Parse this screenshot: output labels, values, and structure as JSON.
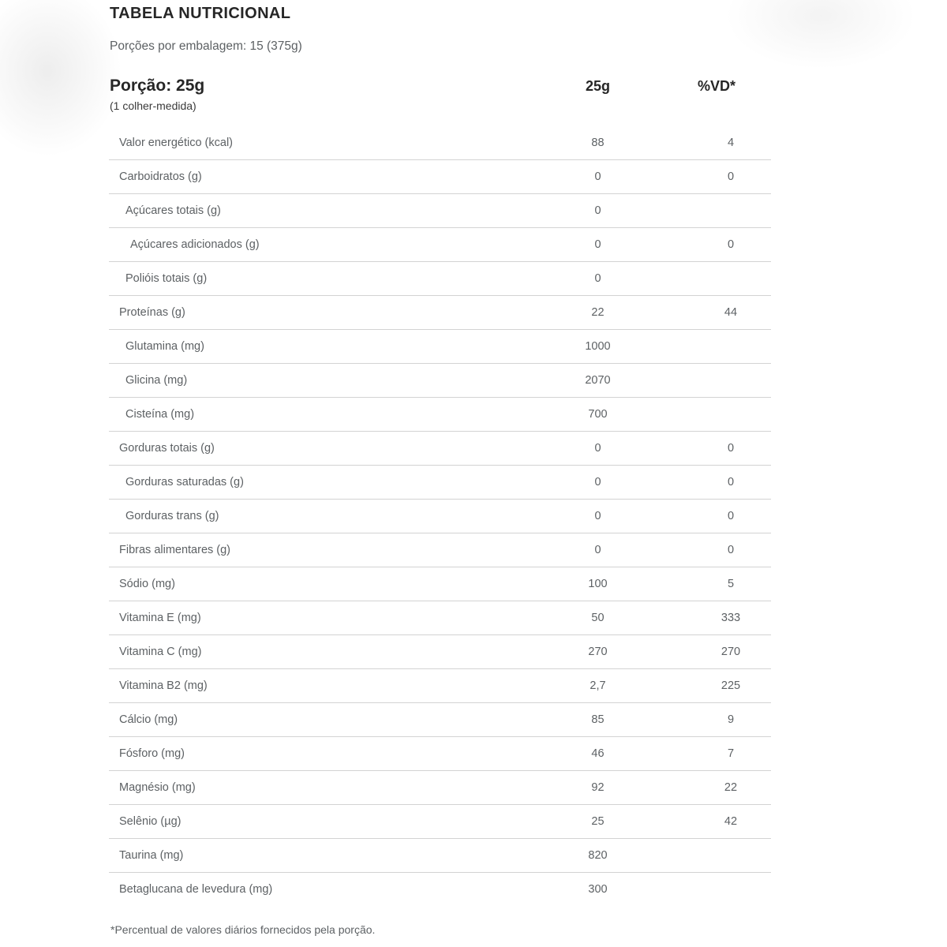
{
  "page": {
    "title": "TABELA NUTRICIONAL",
    "servings_line": "Porções por embalagem: 15 (375g)",
    "portion_label": "Porção: 25g",
    "portion_sub": "(1 colher-medida)",
    "footnote": "*Percentual de valores diários fornecidos pela porção."
  },
  "table": {
    "columns": {
      "amount": "25g",
      "vd": "%VD*"
    },
    "rows": [
      {
        "label": "Valor energético (kcal)",
        "amount": "88",
        "vd": "4",
        "indent": 0
      },
      {
        "label": "Carboidratos (g)",
        "amount": "0",
        "vd": "0",
        "indent": 0
      },
      {
        "label": "Açúcares totais (g)",
        "amount": "0",
        "vd": "",
        "indent": 1
      },
      {
        "label": "Açúcares adicionados (g)",
        "amount": "0",
        "vd": "0",
        "indent": 2
      },
      {
        "label": "Polióis totais (g)",
        "amount": "0",
        "vd": "",
        "indent": 1
      },
      {
        "label": "Proteínas (g)",
        "amount": "22",
        "vd": "44",
        "indent": 0
      },
      {
        "label": "Glutamina (mg)",
        "amount": "1000",
        "vd": "",
        "indent": 1
      },
      {
        "label": "Glicina (mg)",
        "amount": "2070",
        "vd": "",
        "indent": 1
      },
      {
        "label": "Cisteína (mg)",
        "amount": "700",
        "vd": "",
        "indent": 1
      },
      {
        "label": "Gorduras totais (g)",
        "amount": "0",
        "vd": "0",
        "indent": 0
      },
      {
        "label": "Gorduras saturadas (g)",
        "amount": "0",
        "vd": "0",
        "indent": 1
      },
      {
        "label": "Gorduras trans (g)",
        "amount": "0",
        "vd": "0",
        "indent": 1
      },
      {
        "label": "Fibras alimentares (g)",
        "amount": "0",
        "vd": "0",
        "indent": 0
      },
      {
        "label": "Sódio (mg)",
        "amount": "100",
        "vd": "5",
        "indent": 0
      },
      {
        "label": "Vitamina E (mg)",
        "amount": "50",
        "vd": "333",
        "indent": 0
      },
      {
        "label": "Vitamina C (mg)",
        "amount": "270",
        "vd": "270",
        "indent": 0
      },
      {
        "label": "Vitamina B2 (mg)",
        "amount": "2,7",
        "vd": "225",
        "indent": 0
      },
      {
        "label": "Cálcio (mg)",
        "amount": "85",
        "vd": "9",
        "indent": 0
      },
      {
        "label": "Fósforo (mg)",
        "amount": "46",
        "vd": "7",
        "indent": 0
      },
      {
        "label": "Magnésio (mg)",
        "amount": "92",
        "vd": "22",
        "indent": 0
      },
      {
        "label": "Selênio (µg)",
        "amount": "25",
        "vd": "42",
        "indent": 0
      },
      {
        "label": "Taurina (mg)",
        "amount": "820",
        "vd": "",
        "indent": 0
      },
      {
        "label": "Betaglucana de levedura (mg)",
        "amount": "300",
        "vd": "",
        "indent": 0
      }
    ]
  },
  "colors": {
    "heading": "#262626",
    "text": "#5d6164",
    "divider": "#d3d3d3"
  }
}
